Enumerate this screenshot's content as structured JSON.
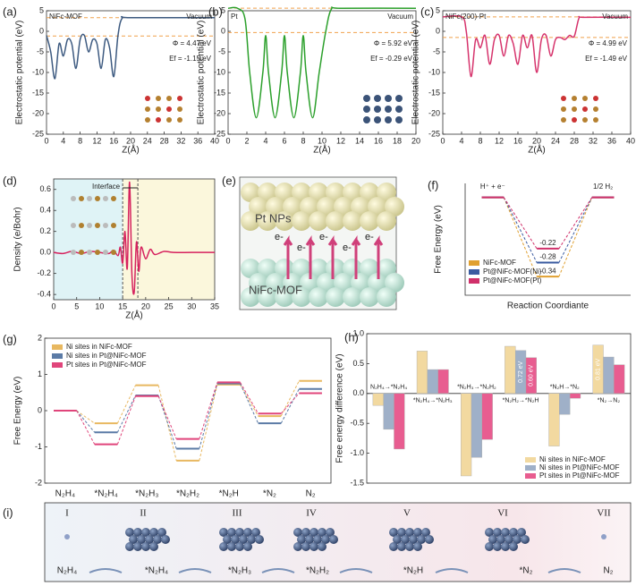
{
  "chart_data": [
    {
      "type": "line",
      "panel_label": "(a)",
      "label": "NiFc-MOF",
      "corner": "Vacuum",
      "annotations": [
        "Φ = 4.47 eV",
        "Ef = -1.15 eV"
      ],
      "xlabel": "Z(Å)",
      "ylabel": "Electrostatic potential (eV)",
      "color": "#3d5a80",
      "ref_color": "#f0a04b",
      "ref_lines": [
        3.32,
        -1.15
      ],
      "x": [
        0,
        1,
        2,
        3,
        4,
        5,
        6,
        7,
        8,
        9,
        10,
        11,
        12,
        13,
        14,
        15,
        16,
        17,
        18,
        20,
        40
      ],
      "values": [
        -1,
        -5,
        -11.5,
        -3,
        -6,
        -2,
        -3,
        -9,
        -2,
        -1,
        -5,
        -2,
        -3,
        -9,
        -2,
        -4,
        -11,
        -1,
        3.2,
        3.32,
        3.32
      ],
      "xlim": [
        0,
        40
      ],
      "xticks": [
        0,
        4,
        8,
        12,
        16,
        20,
        24,
        28,
        32,
        36,
        40
      ],
      "ylim": [
        -25,
        5
      ],
      "yticks": [
        -25,
        -20,
        -15,
        -10,
        -5,
        0,
        5
      ]
    },
    {
      "type": "line",
      "panel_label": "(b)",
      "label": "Pt",
      "corner": "Vacuum",
      "annotations": [
        "Φ = 5.92 eV",
        "Ef = -0.29 eV"
      ],
      "xlabel": "Z(Å)",
      "ylabel": "Electrostatic potential (eV)",
      "color": "#2ca02c",
      "ref_color": "#f0a04b",
      "ref_lines": [
        5.63,
        -0.29
      ],
      "x": [
        0,
        1,
        1.8,
        2.3,
        3,
        3.7,
        4,
        4.3,
        5,
        5.7,
        6,
        6.3,
        7,
        7.7,
        8,
        8.3,
        9,
        9.7,
        10.4,
        11,
        12,
        20
      ],
      "values": [
        5.6,
        5.6,
        3,
        -10,
        -21,
        -10,
        -1,
        -10,
        -21,
        -10,
        -1,
        -10,
        -21,
        -10,
        -1,
        -10,
        -21,
        -10,
        0,
        5.4,
        5.6,
        5.6
      ],
      "xlim": [
        0,
        20
      ],
      "xticks": [
        0,
        2,
        4,
        6,
        8,
        10,
        12,
        14,
        16,
        18,
        20
      ],
      "ylim": [
        -25,
        5
      ],
      "yticks": [
        -25,
        -20,
        -15,
        -10,
        -5,
        0,
        5
      ]
    },
    {
      "type": "line",
      "panel_label": "(c)",
      "label": "NiFc(200)-Pt",
      "corner": "Vacuum",
      "annotations": [
        "Φ = 4.99 eV",
        "Ef = -1.49 eV"
      ],
      "xlabel": "Z(Å)",
      "ylabel": "Electrostatic potential (eV)",
      "color": "#d6336c",
      "ref_color": "#f0a04b",
      "ref_lines": [
        3.5,
        -1.49
      ],
      "x": [
        0,
        4,
        5,
        6,
        7,
        8,
        9,
        10,
        11,
        12,
        13,
        14,
        15,
        16,
        17,
        18,
        19,
        20,
        21,
        22,
        23,
        24,
        25,
        26,
        27,
        28,
        29,
        30,
        40
      ],
      "values": [
        3.5,
        3.5,
        0,
        -11,
        -2,
        -4,
        -1,
        -8,
        -2,
        -1,
        -6,
        -1,
        -3,
        -8,
        -1,
        -4,
        -1,
        -10,
        -2,
        -1,
        -6,
        -2,
        -1.5,
        -2,
        -1,
        -1.2,
        3.2,
        3.4,
        3.4
      ],
      "xlim": [
        0,
        40
      ],
      "xticks": [
        0,
        4,
        8,
        12,
        16,
        20,
        24,
        28,
        32,
        36,
        40
      ],
      "ylim": [
        -25,
        5
      ],
      "yticks": [
        -25,
        -20,
        -15,
        -10,
        -5,
        0,
        5
      ]
    },
    {
      "type": "line",
      "panel_label": "(d)",
      "label": "Interface",
      "xlabel": "Z(Å)",
      "ylabel": "Density (e/Bohr)",
      "color": "#d6225e",
      "xref_lines": [
        15,
        18.3
      ],
      "x": [
        0,
        2,
        4,
        6,
        8,
        10,
        12,
        13,
        14,
        14.5,
        15,
        15.5,
        16,
        16.5,
        17,
        17.5,
        18,
        18.5,
        19,
        20,
        21,
        22,
        24,
        26,
        30,
        35
      ],
      "values": [
        0,
        -0.01,
        0.01,
        -0.01,
        0.01,
        0,
        -0.01,
        0.02,
        -0.03,
        0.05,
        -0.1,
        0.2,
        -0.15,
        0.67,
        -0.2,
        -0.38,
        0.1,
        -0.18,
        0.05,
        -0.06,
        0.03,
        -0.02,
        0.01,
        0,
        0,
        0
      ],
      "xlim": [
        0,
        35
      ],
      "xticks": [
        0,
        5,
        10,
        15,
        20,
        25,
        30,
        35
      ],
      "ylim": [
        -0.45,
        0.7
      ],
      "yticks": [
        -0.4,
        -0.2,
        {
          "value": 0,
          "label": "0.0"
        },
        0.2,
        0.4,
        0.6
      ]
    },
    {
      "type": "step",
      "panel_label": "(f)",
      "ylabel": "Free Energy (eV)",
      "xlabel": "Reaction Coordiante",
      "categories": [
        "H⁺ + e⁻",
        null,
        "1/2 H₂"
      ],
      "ylim": [
        -0.42,
        0.06
      ],
      "series": [
        {
          "name": "NiFc-MOF",
          "color": "#e0a030",
          "values": [
            0,
            -0.34,
            0
          ]
        },
        {
          "name": "Pt@NiFc-MOF(Ni)",
          "color": "#3a5ba0",
          "values": [
            0,
            -0.28,
            0
          ]
        },
        {
          "name": "Pt@NiFc-MOF(Pt)",
          "color": "#d0306a",
          "values": [
            0,
            -0.22,
            0
          ]
        }
      ]
    },
    {
      "type": "step",
      "panel_label": "(g)",
      "ylabel": "Free Energy (eV)",
      "categories": [
        "N₂H₄",
        "*N₂H₄",
        "*N₂H₃",
        "*N₂H₂",
        "*N₂H",
        "*N₂",
        "N₂"
      ],
      "ylim": [
        -2,
        2
      ],
      "yticks": [
        -2,
        -1,
        0,
        1,
        2
      ],
      "series": [
        {
          "name": "Ni sites in NiFc-MOF",
          "color": "#e8b860",
          "values": [
            0,
            -0.35,
            0.7,
            -1.38,
            0.72,
            -0.15,
            0.82
          ]
        },
        {
          "name": "Ni sites in Pt@NiFc-MOF",
          "color": "#5b7ba6",
          "values": [
            0,
            -0.6,
            0.42,
            -1.05,
            0.75,
            -0.35,
            0.6
          ]
        },
        {
          "name": "Pt sites in Pt@NiFc-MOF",
          "color": "#e0457b",
          "values": [
            0,
            -0.93,
            0.4,
            -0.78,
            0.78,
            -0.08,
            0.48
          ]
        }
      ]
    },
    {
      "type": "bar",
      "panel_label": "(h)",
      "ylabel": "Free energy difference (eV)",
      "categories": [
        "N₂H₄→*N₂H₄",
        "*N₂H₄→*N₂H₃",
        "*N₂H₃→*N₂H₂",
        "*N₂H₂→*N₂H",
        "*N₂H→*N₂",
        "*N₂→N₂"
      ],
      "ylim": [
        -1.5,
        1.0
      ],
      "yticks": [
        {
          "value": -1.5,
          "label": "-1.5"
        },
        {
          "value": -1,
          "label": "-1.0"
        },
        {
          "value": -0.5,
          "label": "-0.5"
        },
        {
          "value": 0,
          "label": "0.0"
        },
        {
          "value": 0.5,
          "label": "0.5"
        },
        {
          "value": 1,
          "label": "1.0"
        }
      ],
      "series": [
        {
          "name": "Ni sites in NiFc-MOF",
          "color": "#f2d9a0",
          "values": [
            -0.2,
            0.71,
            -1.38,
            0.79,
            -0.88,
            0.81
          ],
          "value_labels": [
            null,
            null,
            null,
            null,
            null,
            "0.81 eV"
          ]
        },
        {
          "name": "Ni sites in Pt@NiFc-MOF",
          "color": "#9fb0c8",
          "values": [
            -0.6,
            0.4,
            -1.07,
            0.72,
            -0.35,
            0.61
          ],
          "value_labels": [
            null,
            null,
            null,
            "0.72 eV",
            null,
            null
          ]
        },
        {
          "name": "Pt sites in Pt@NiFc-MOF",
          "color": "#e85d90",
          "values": [
            -0.93,
            0.4,
            -0.77,
            0.6,
            -0.08,
            0.48
          ],
          "value_labels": [
            null,
            null,
            null,
            "0.60 eV",
            null,
            null
          ]
        }
      ]
    }
  ],
  "diagram_e": {
    "panel_label": "(e)",
    "top": "Pt NPs",
    "bottom": "NiFc-MOF",
    "electrons": [
      "e-",
      "e-",
      "e-",
      "e-",
      "e-"
    ]
  },
  "scheme_i": {
    "panel_label": "(i)",
    "stages": [
      "I",
      "II",
      "III",
      "IV",
      "V",
      "VI",
      "VII"
    ],
    "labels": [
      "N₂H₄",
      "*N₂H₄",
      "*N₂H₃",
      "*N₂H₂",
      "*N₂H",
      "*N₂",
      "N₂"
    ]
  }
}
